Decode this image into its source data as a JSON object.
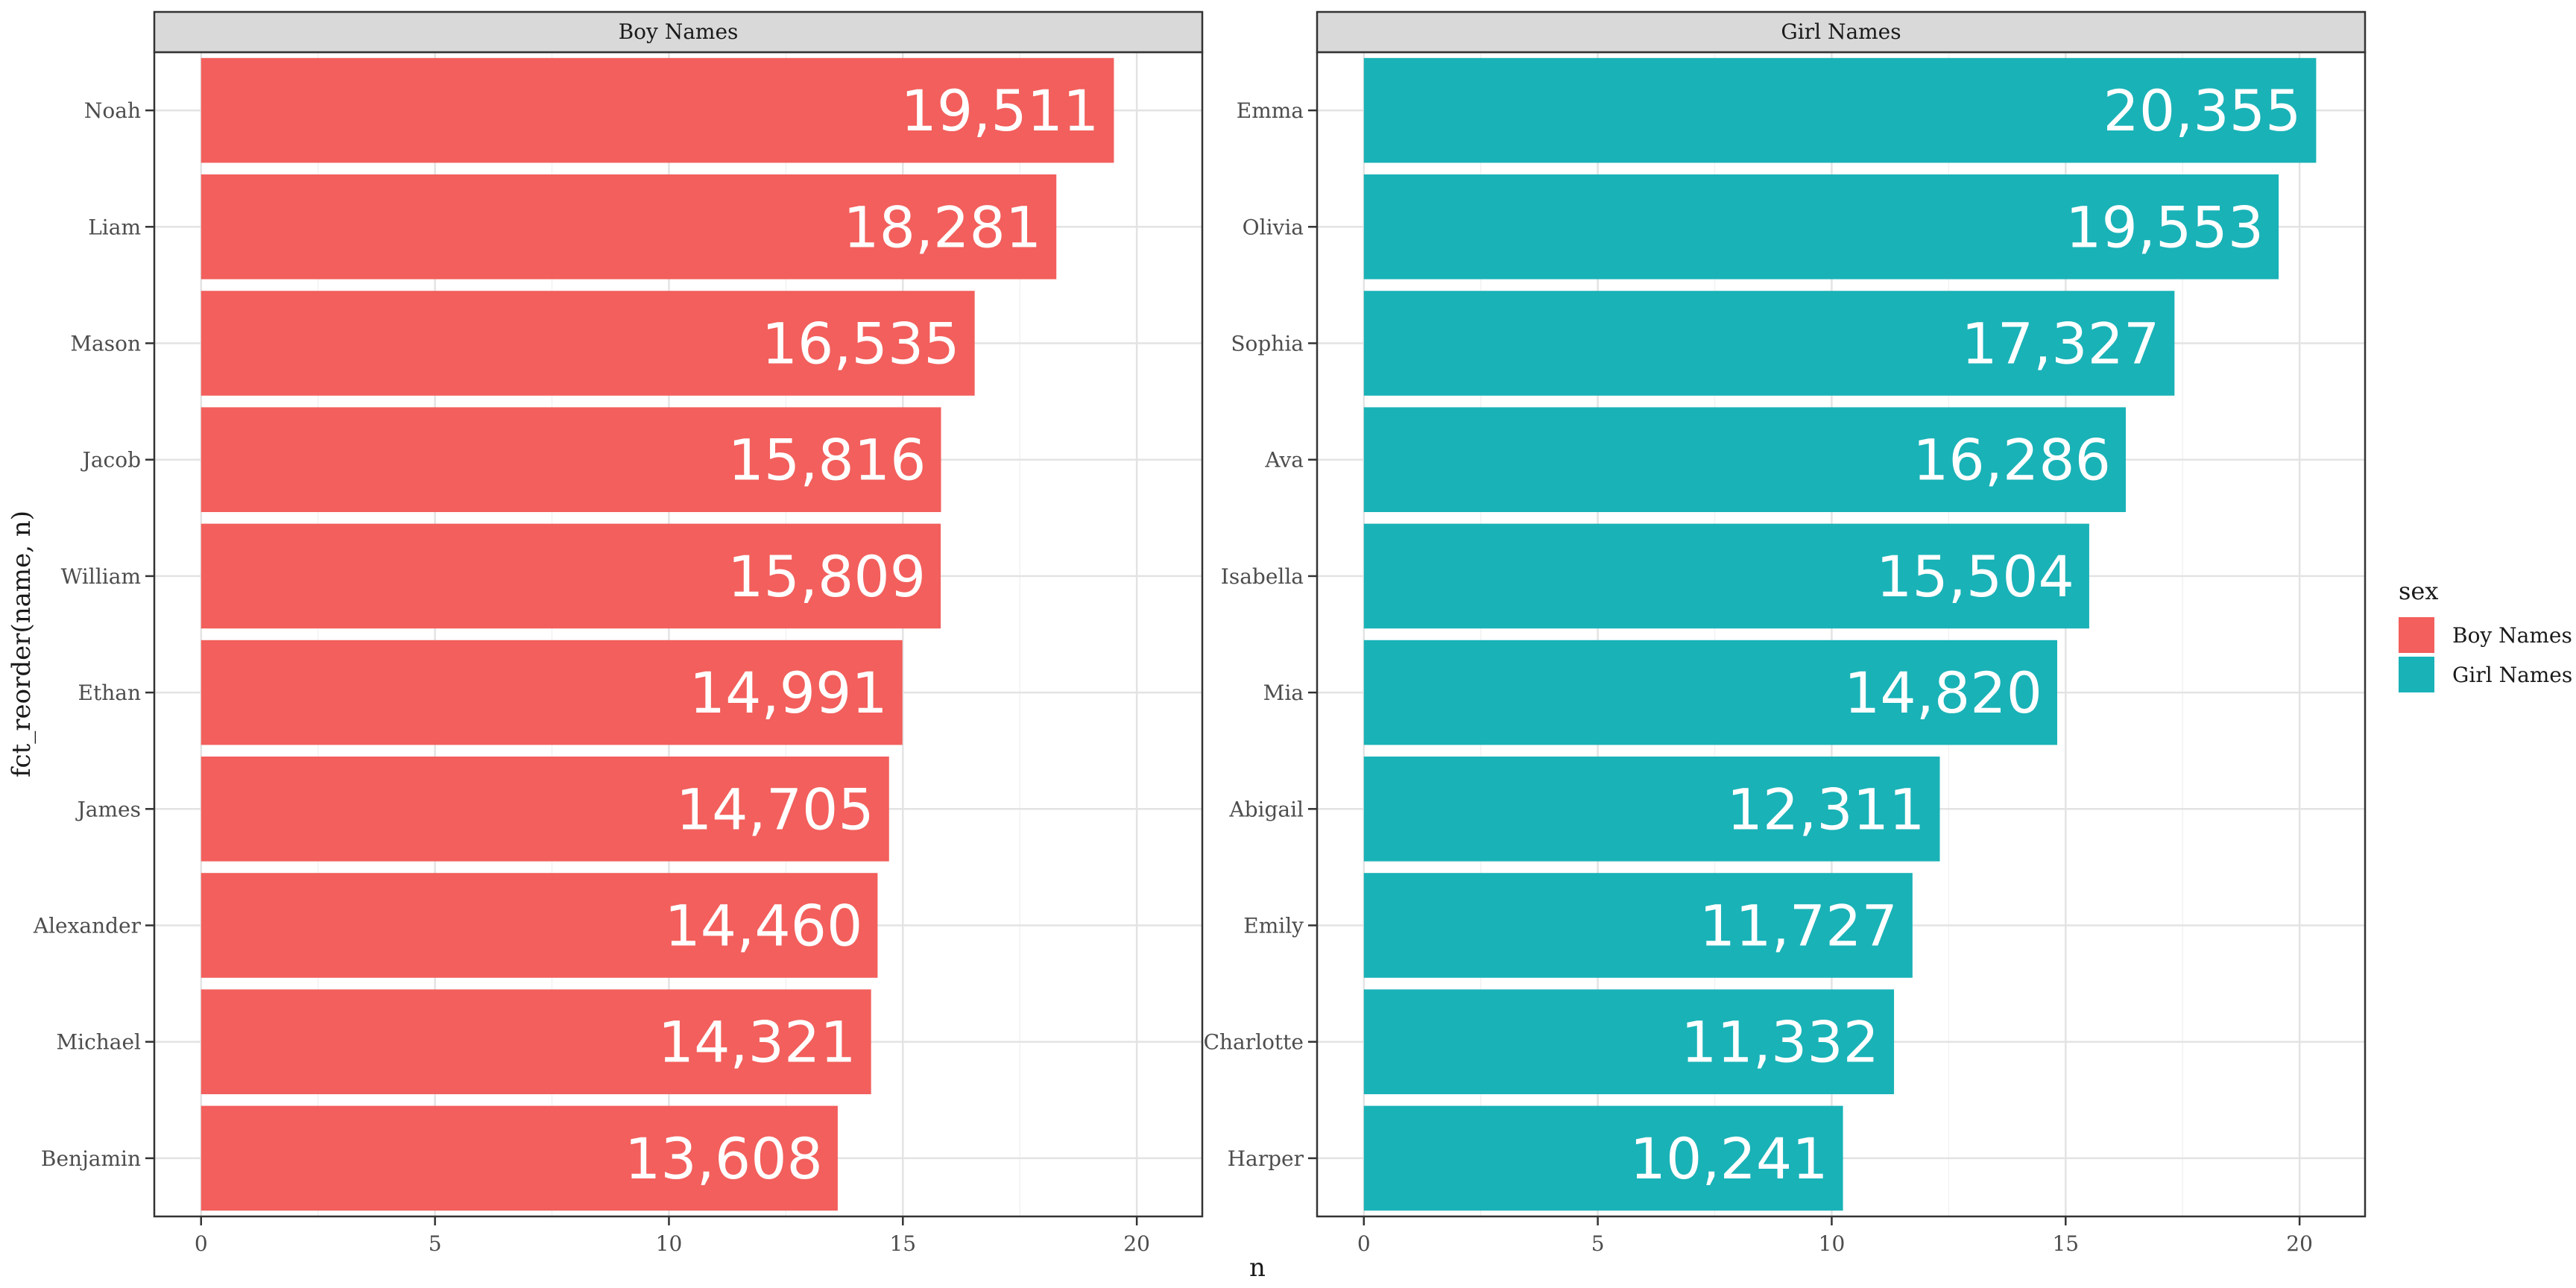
{
  "chart_data": {
    "type": "bar",
    "orientation": "horizontal",
    "xlabel": "n",
    "ylabel": "fct_reorder(name, n)",
    "xlim": [
      -1,
      21.4
    ],
    "xticks": [
      0,
      5,
      10,
      15,
      20
    ],
    "grid": true,
    "legend": {
      "title": "sex",
      "position": "right",
      "entries": [
        {
          "label": "Boy Names",
          "color": "#F25F5C"
        },
        {
          "label": "Girl Names",
          "color": "#19B2B7"
        }
      ]
    },
    "panels": [
      {
        "title": "Boy Names",
        "color": "#F25F5C",
        "categories": [
          "Noah",
          "Liam",
          "Mason",
          "Jacob",
          "William",
          "Ethan",
          "James",
          "Alexander",
          "Michael",
          "Benjamin"
        ],
        "values": [
          19.511,
          18.281,
          16.535,
          15.816,
          15.809,
          14.991,
          14.705,
          14.46,
          14.321,
          13.608
        ],
        "labels": [
          "19,511",
          "18,281",
          "16,535",
          "15,816",
          "15,809",
          "14,991",
          "14,705",
          "14,460",
          "14,321",
          "13,608"
        ]
      },
      {
        "title": "Girl Names",
        "color": "#19B2B7",
        "categories": [
          "Emma",
          "Olivia",
          "Sophia",
          "Ava",
          "Isabella",
          "Mia",
          "Abigail",
          "Emily",
          "Charlotte",
          "Harper"
        ],
        "values": [
          20.355,
          19.553,
          17.327,
          16.286,
          15.504,
          14.82,
          12.311,
          11.727,
          11.332,
          10.241
        ],
        "labels": [
          "20,355",
          "19,553",
          "17,327",
          "16,286",
          "15,504",
          "14,820",
          "12,311",
          "11,727",
          "11,332",
          "10,241"
        ]
      }
    ]
  }
}
